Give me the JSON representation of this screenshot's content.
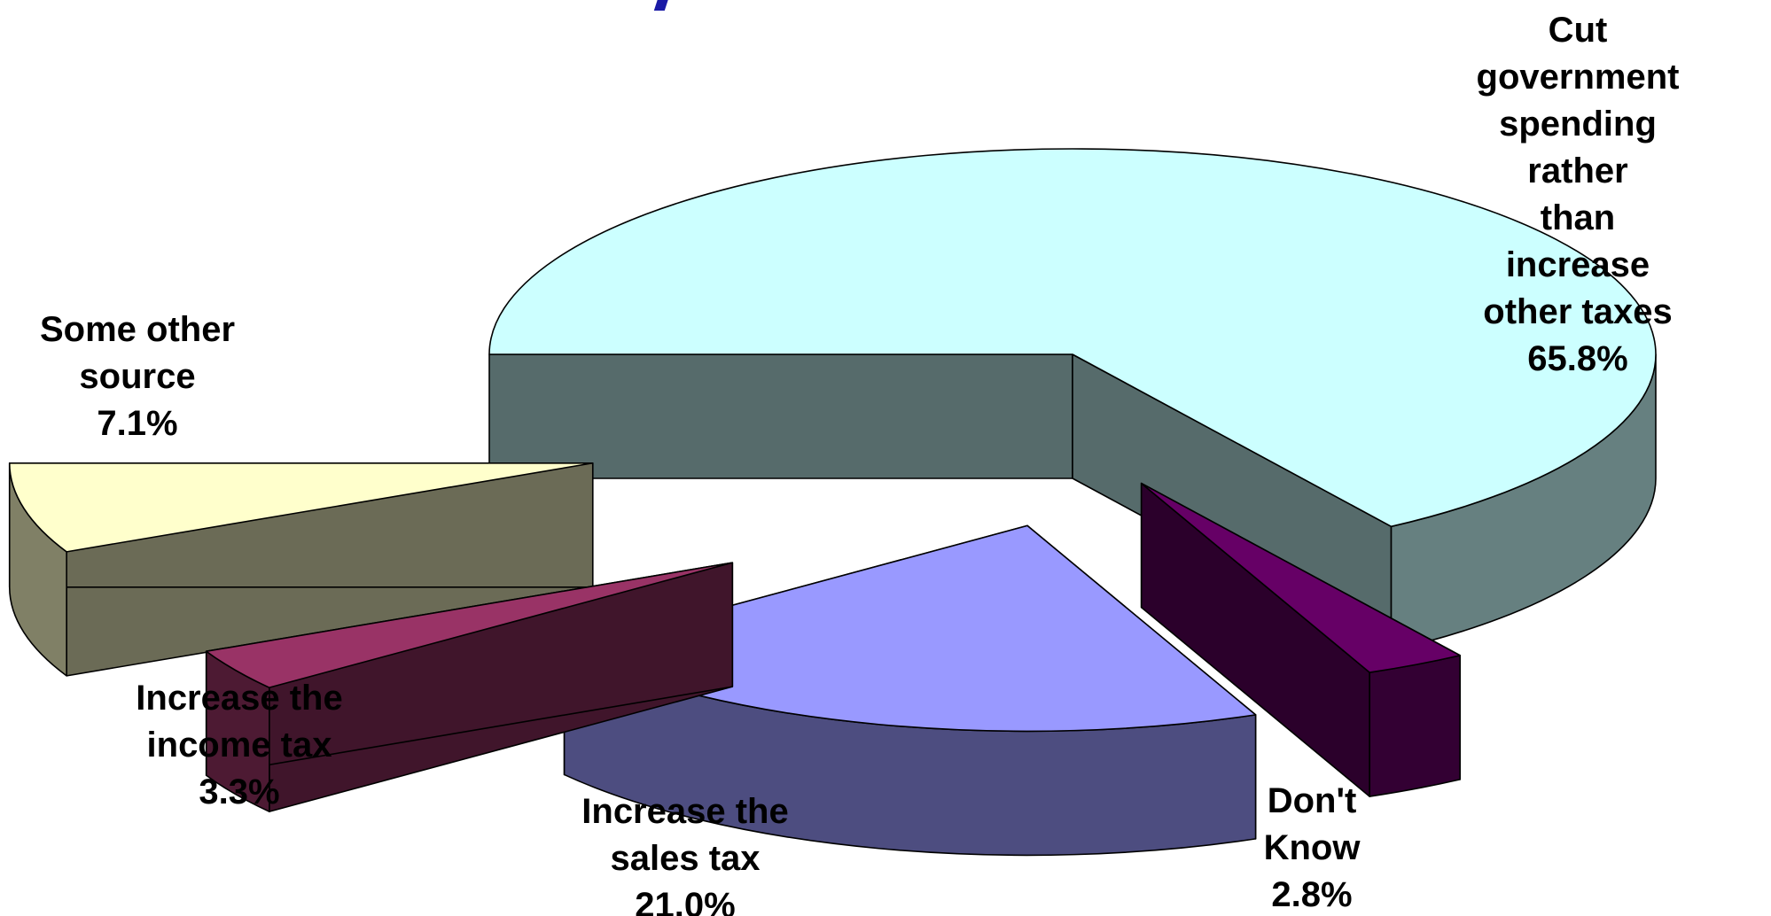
{
  "chart_data": {
    "type": "pie",
    "style": "3d-exploded",
    "title": "",
    "slices": [
      {
        "label": "Cut government\nspending rather\nthan increase\nother taxes",
        "value": 65.8,
        "value_label": "65.8%",
        "color": "#CCFFFF"
      },
      {
        "label": "Don't\nKnow",
        "value": 2.8,
        "value_label": "2.8%",
        "color": "#660066"
      },
      {
        "label": "Increase the\nsales tax",
        "value": 21.0,
        "value_label": "21.0%",
        "color": "#9999FF"
      },
      {
        "label": "Increase the\nincome tax",
        "value": 3.3,
        "value_label": "3.3%",
        "color": "#993366"
      },
      {
        "label": "Some other\nsource",
        "value": 7.1,
        "value_label": "7.1%",
        "color": "#FFFFCC"
      }
    ]
  },
  "colors": {
    "outline": "#000000",
    "title_fragment": "#1A1AA6"
  }
}
